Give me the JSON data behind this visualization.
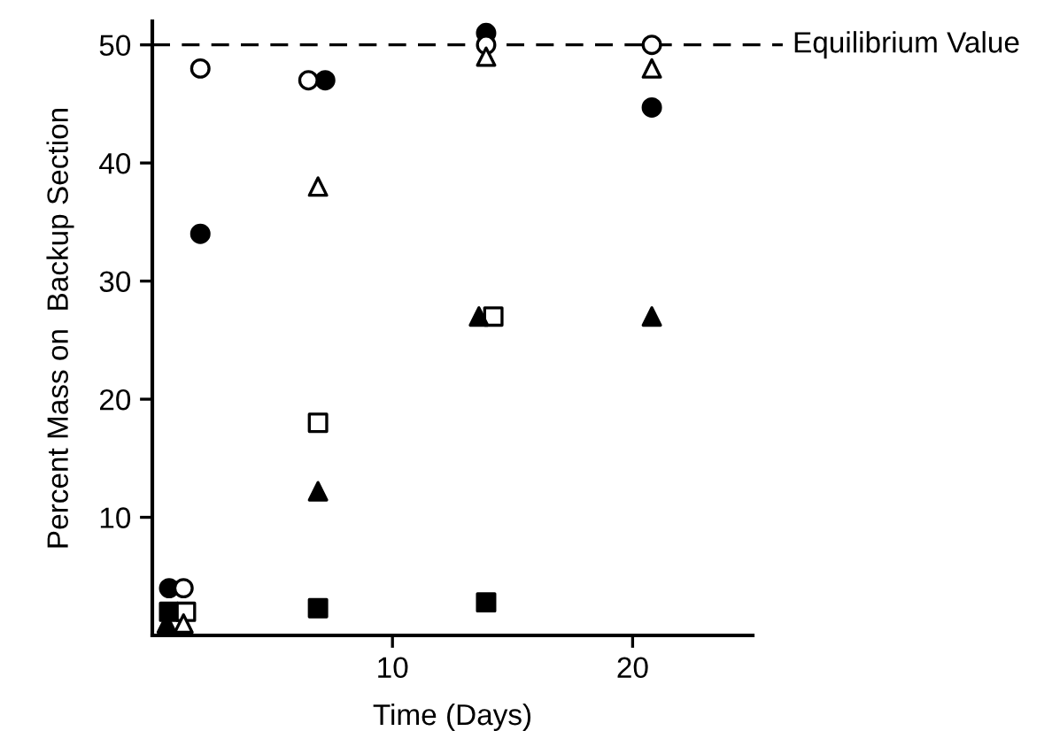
{
  "chart_data": {
    "type": "scatter",
    "xlabel": "Time (Days)",
    "ylabel": "Percent Mass on  Backup Section",
    "xlim": [
      0,
      25
    ],
    "ylim": [
      0,
      52
    ],
    "xticks": [
      10,
      20
    ],
    "yticks": [
      10,
      20,
      30,
      40,
      50
    ],
    "grid": false,
    "legend": false,
    "series": [
      {
        "color": "#000000",
        "marker": "circle",
        "x": [
          0.7,
          2.0,
          7.2,
          13.9,
          20.8
        ],
        "values": [
          4,
          34,
          47,
          51,
          44.7
        ]
      },
      {
        "color": "#ffffff",
        "marker": "circle",
        "x": [
          1.3,
          2.0,
          6.5,
          13.9,
          20.8
        ],
        "values": [
          4,
          48,
          47,
          50,
          50
        ]
      },
      {
        "color": "#000000",
        "marker": "square",
        "x": [
          0.7,
          6.9,
          13.9
        ],
        "values": [
          2,
          2.3,
          2.8
        ]
      },
      {
        "color": "#ffffff",
        "marker": "square",
        "x": [
          1.4,
          6.9,
          14.2
        ],
        "values": [
          2,
          18,
          27
        ]
      },
      {
        "color": "#000000",
        "marker": "triangle",
        "x": [
          0.6,
          6.9,
          13.6,
          20.8
        ],
        "values": [
          1,
          12.2,
          27,
          27
        ]
      },
      {
        "color": "#ffffff",
        "marker": "triangle",
        "x": [
          1.3,
          6.9,
          13.9,
          20.8
        ],
        "values": [
          1,
          38,
          49,
          48
        ]
      }
    ],
    "ref_lines": [
      {
        "axis": "y",
        "value": 50,
        "label": "Equilibrium Value",
        "line_style": "dashed"
      }
    ]
  }
}
